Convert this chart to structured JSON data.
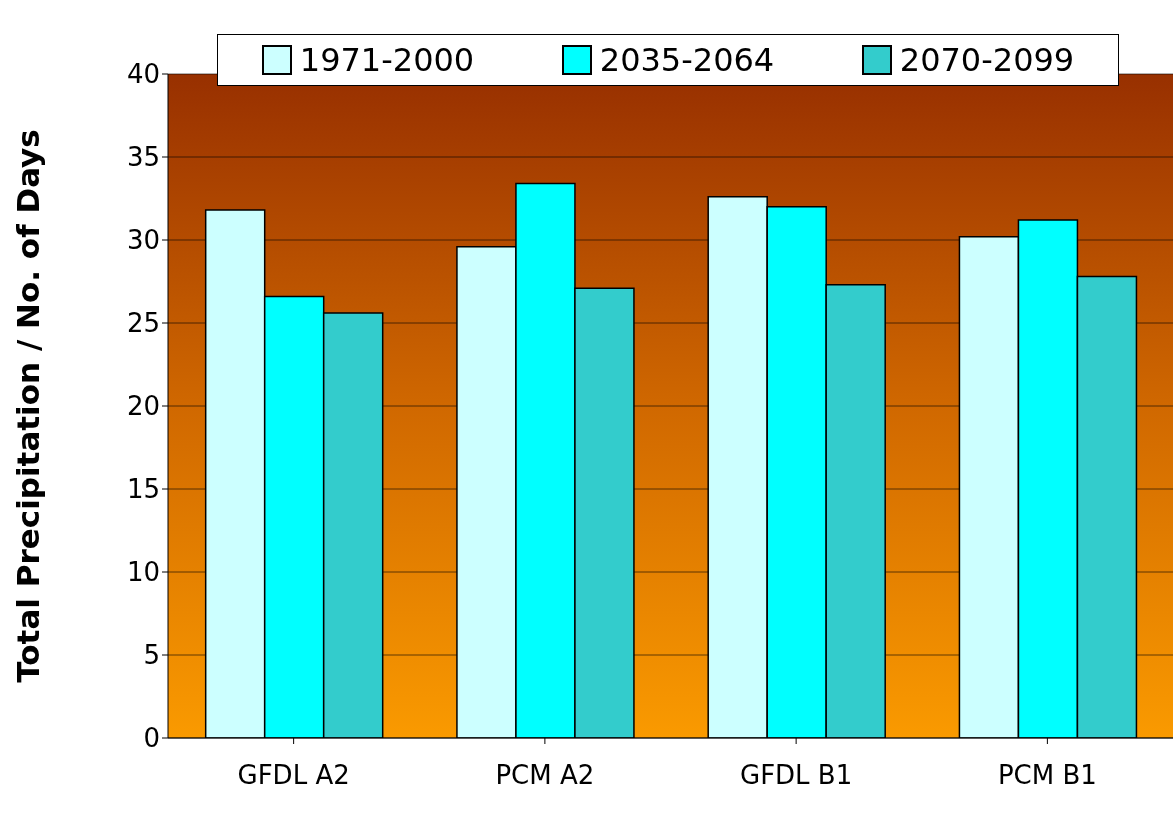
{
  "chart_data": {
    "type": "bar",
    "ylabel": "Total Precipitation / No. of Days",
    "categories": [
      "GFDL A2",
      "PCM A2",
      "GFDL B1",
      "PCM B1"
    ],
    "series": [
      {
        "name": "1971-2000",
        "color": "#ccffff",
        "values": [
          31.8,
          29.6,
          32.6,
          30.2
        ]
      },
      {
        "name": "2035-2064",
        "color": "#00ffff",
        "values": [
          26.6,
          33.4,
          32.0,
          31.2
        ]
      },
      {
        "name": "2070-2099",
        "color": "#33cccc",
        "values": [
          25.6,
          27.1,
          27.3,
          27.8
        ]
      }
    ],
    "ylim": [
      0,
      40
    ],
    "yticks": [
      0,
      5,
      10,
      15,
      20,
      25,
      30,
      35,
      40
    ],
    "grid": "y",
    "legend": "top"
  }
}
